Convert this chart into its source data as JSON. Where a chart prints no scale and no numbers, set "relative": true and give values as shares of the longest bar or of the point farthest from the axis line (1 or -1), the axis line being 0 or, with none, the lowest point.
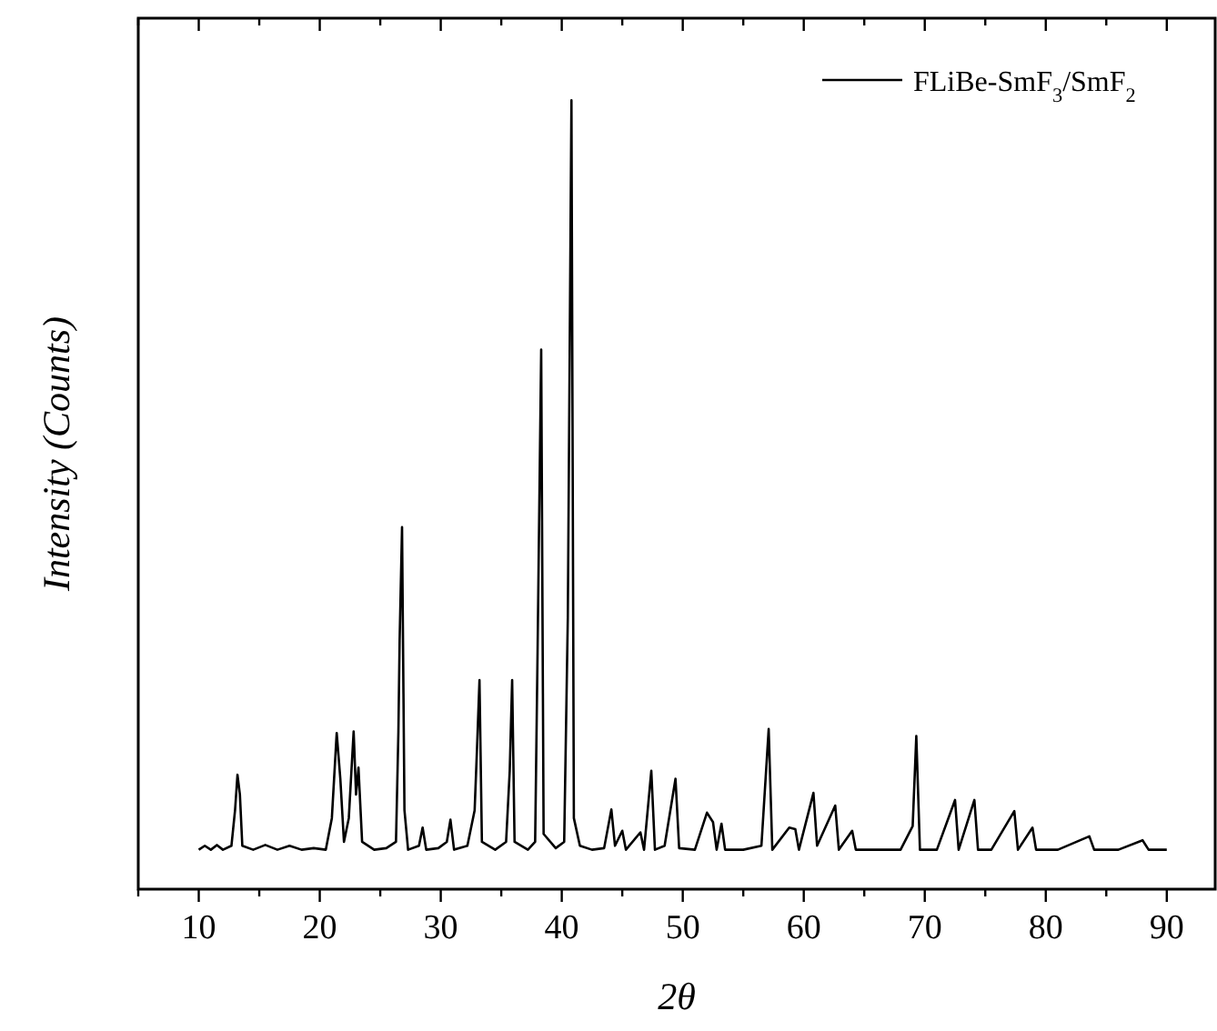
{
  "chart_data": {
    "type": "line",
    "relative": true,
    "xlabel": "2θ",
    "ylabel": "Intensity (Counts)",
    "xlim": [
      5,
      94
    ],
    "xticks": [
      {
        "value": 5,
        "label": null
      },
      10,
      {
        "value": 15,
        "label": null
      },
      20,
      {
        "value": 25,
        "label": null
      },
      30,
      {
        "value": 35,
        "label": null
      },
      40,
      {
        "value": 45,
        "label": null
      },
      50,
      {
        "value": 55,
        "label": null
      },
      60,
      {
        "value": 65,
        "label": null
      },
      70,
      {
        "value": 75,
        "label": null
      },
      80,
      {
        "value": 85,
        "label": null
      },
      90
    ],
    "legend": "top right",
    "marker": "none",
    "line_style": "solid",
    "series": [
      {
        "name": "FLiBe-SmF$_{3}$/SmF$_{2}$",
        "color": "#000000",
        "x": [
          10.0,
          10.5,
          11,
          11.5,
          12,
          12.7,
          13.0,
          13.2,
          13.4,
          13.6,
          14.5,
          15.5,
          16.5,
          17.5,
          18.5,
          19.5,
          20.5,
          21.0,
          21.4,
          21.7,
          22.0,
          22.4,
          22.8,
          23.0,
          23.2,
          23.5,
          24.5,
          25.5,
          26.3,
          26.5,
          26.6,
          26.8,
          27.0,
          27.3,
          28.2,
          28.5,
          28.8,
          29.8,
          30.5,
          30.8,
          31.1,
          32.2,
          32.8,
          33.0,
          33.2,
          33.4,
          34.5,
          35.4,
          35.7,
          35.9,
          36.1,
          37.2,
          37.8,
          38.0,
          38.1,
          38.3,
          38.5,
          39.5,
          40.2,
          40.4,
          40.5,
          40.8,
          41.0,
          41.5,
          42.5,
          43.5,
          44.1,
          44.4,
          45.0,
          45.3,
          46.5,
          46.8,
          47.4,
          47.7,
          48.5,
          49.4,
          49.7,
          51,
          52.0,
          52.5,
          52.8,
          53.2,
          53.5,
          55,
          56.5,
          57.1,
          57.4,
          58.8,
          59.3,
          59.6,
          60.8,
          61.1,
          62.6,
          62.9,
          64.0,
          64.3,
          66,
          68,
          69.0,
          69.3,
          69.6,
          71,
          72.5,
          72.8,
          74.1,
          74.4,
          75.5,
          77.4,
          77.7,
          78.9,
          79.2,
          81,
          83.6,
          84,
          86,
          88,
          88.5,
          90
        ],
        "values": [
          0.05,
          0.055,
          0.05,
          0.056,
          0.05,
          0.055,
          0.1,
          0.145,
          0.12,
          0.055,
          0.05,
          0.056,
          0.05,
          0.055,
          0.05,
          0.052,
          0.05,
          0.09,
          0.198,
          0.14,
          0.06,
          0.09,
          0.2,
          0.12,
          0.154,
          0.06,
          0.05,
          0.052,
          0.06,
          0.2,
          0.315,
          0.459,
          0.1,
          0.05,
          0.055,
          0.078,
          0.05,
          0.052,
          0.06,
          0.088,
          0.05,
          0.055,
          0.1,
          0.18,
          0.265,
          0.06,
          0.05,
          0.06,
          0.15,
          0.265,
          0.06,
          0.05,
          0.06,
          0.3,
          0.43,
          0.684,
          0.07,
          0.052,
          0.06,
          0.25,
          0.344,
          1.0,
          0.09,
          0.055,
          0.05,
          0.052,
          0.101,
          0.055,
          0.074,
          0.05,
          0.072,
          0.05,
          0.15,
          0.05,
          0.055,
          0.14,
          0.052,
          0.05,
          0.097,
          0.085,
          0.05,
          0.083,
          0.05,
          0.05,
          0.055,
          0.203,
          0.05,
          0.078,
          0.076,
          0.05,
          0.122,
          0.055,
          0.106,
          0.05,
          0.074,
          0.05,
          0.05,
          0.05,
          0.08,
          0.194,
          0.05,
          0.05,
          0.113,
          0.05,
          0.113,
          0.05,
          0.05,
          0.099,
          0.05,
          0.078,
          0.05,
          0.05,
          0.067,
          0.05,
          0.05,
          0.062,
          0.05,
          0.05
        ]
      }
    ]
  }
}
